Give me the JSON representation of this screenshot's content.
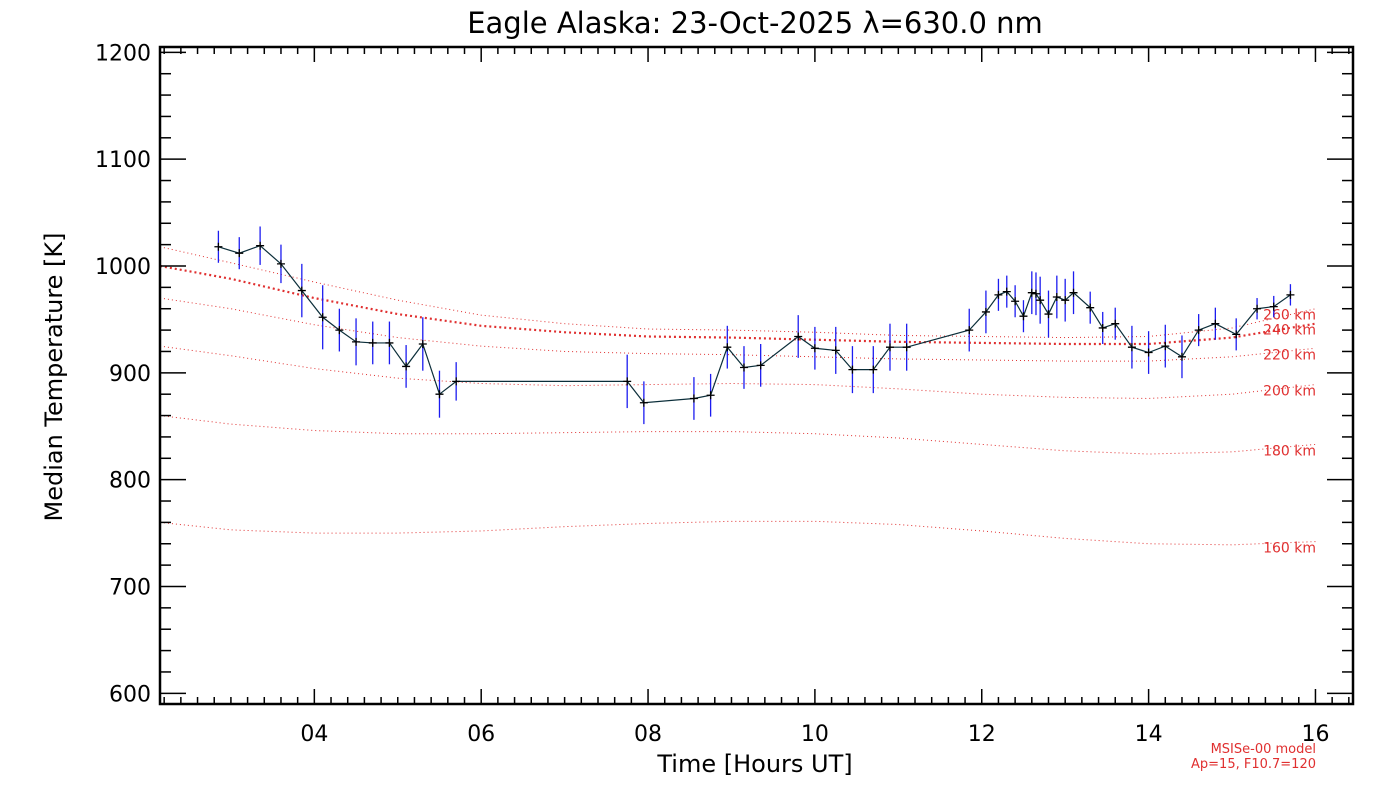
{
  "chart_data": {
    "type": "line",
    "title": "Eagle Alaska: 23-Oct-2025 λ=630.0 nm",
    "xlabel": "Time [Hours UT]",
    "ylabel": "Median Temperature [K]",
    "xlim": [
      2.15,
      16.45
    ],
    "ylim": [
      590,
      1205
    ],
    "x_ticks": [
      4,
      6,
      8,
      10,
      12,
      14,
      16
    ],
    "x_tick_labels": [
      "04",
      "06",
      "08",
      "10",
      "12",
      "14",
      "16"
    ],
    "y_ticks": [
      600,
      700,
      800,
      900,
      1000,
      1100,
      1200
    ],
    "y_tick_labels": [
      "600",
      "700",
      "800",
      "900",
      "1000",
      "1100",
      "1200"
    ],
    "grid": false,
    "colors": {
      "measured_line": "#0b2e3a",
      "error_bars": "#1c1cf0",
      "markers": "#000000",
      "model": "#e03030"
    },
    "measured": {
      "x": [
        2.85,
        3.1,
        3.35,
        3.6,
        3.85,
        4.1,
        4.3,
        4.5,
        4.7,
        4.9,
        5.1,
        5.3,
        5.5,
        5.7,
        7.75,
        7.95,
        8.55,
        8.75,
        8.95,
        9.15,
        9.35,
        9.8,
        10.0,
        10.25,
        10.45,
        10.7,
        10.9,
        11.1,
        11.85,
        12.05,
        12.2,
        12.3,
        12.4,
        12.5,
        12.6,
        12.65,
        12.7,
        12.8,
        12.9,
        13.0,
        13.1,
        13.3,
        13.45,
        13.6,
        13.8,
        14.0,
        14.2,
        14.4,
        14.6,
        14.8,
        15.05,
        15.3,
        15.5,
        15.7
      ],
      "y": [
        1018,
        1012,
        1019,
        1002,
        977,
        952,
        940,
        929,
        928,
        928,
        906,
        927,
        880,
        892,
        892,
        872,
        876,
        879,
        924,
        905,
        907,
        934,
        923,
        921,
        903,
        903,
        924,
        924,
        940,
        957,
        973,
        976,
        967,
        953,
        975,
        974,
        968,
        955,
        971,
        968,
        975,
        961,
        942,
        946,
        924,
        919,
        925,
        915,
        940,
        946,
        936,
        960,
        962,
        973
      ],
      "error": [
        15,
        15,
        18,
        18,
        25,
        30,
        20,
        22,
        20,
        20,
        20,
        25,
        22,
        18,
        25,
        20,
        20,
        20,
        20,
        20,
        20,
        20,
        20,
        22,
        22,
        22,
        22,
        22,
        20,
        20,
        15,
        15,
        15,
        15,
        20,
        20,
        22,
        22,
        20,
        20,
        20,
        15,
        15,
        15,
        20,
        20,
        20,
        20,
        15,
        15,
        15,
        10,
        10,
        10
      ]
    },
    "model_label": "MSISe-00 model",
    "model_params": "Ap=15, F10.7=120",
    "model_series": [
      {
        "name": "260 km",
        "x": [
          2.15,
          3.0,
          4.0,
          5.0,
          6.0,
          7.0,
          8.0,
          9.0,
          10.0,
          11.0,
          12.0,
          13.0,
          14.0,
          15.0,
          16.0
        ],
        "y": [
          1018,
          1003,
          985,
          968,
          954,
          946,
          941,
          940,
          938,
          935,
          934,
          933,
          934,
          942,
          960
        ]
      },
      {
        "name": "240 km",
        "x": [
          2.15,
          3.0,
          4.0,
          5.0,
          6.0,
          7.0,
          8.0,
          9.0,
          10.0,
          11.0,
          12.0,
          13.0,
          14.0,
          15.0,
          16.0
        ],
        "y": [
          1000,
          988,
          970,
          955,
          944,
          938,
          934,
          933,
          931,
          929,
          928,
          927,
          927,
          933,
          946
        ]
      },
      {
        "name": "220 km",
        "x": [
          2.15,
          3.0,
          4.0,
          5.0,
          6.0,
          7.0,
          8.0,
          9.0,
          10.0,
          11.0,
          12.0,
          13.0,
          14.0,
          15.0,
          16.0
        ],
        "y": [
          970,
          960,
          945,
          933,
          925,
          920,
          918,
          917,
          915,
          913,
          912,
          911,
          911,
          915,
          923
        ]
      },
      {
        "name": "200 km",
        "x": [
          2.15,
          3.0,
          4.0,
          5.0,
          6.0,
          7.0,
          8.0,
          9.0,
          10.0,
          11.0,
          12.0,
          13.0,
          14.0,
          15.0,
          16.0
        ],
        "y": [
          925,
          916,
          904,
          895,
          890,
          888,
          889,
          890,
          889,
          885,
          880,
          877,
          876,
          880,
          889
        ]
      },
      {
        "name": "180 km",
        "x": [
          2.15,
          3.0,
          4.0,
          5.0,
          6.0,
          7.0,
          8.0,
          9.0,
          10.0,
          11.0,
          12.0,
          13.0,
          14.0,
          15.0,
          16.0
        ],
        "y": [
          860,
          852,
          846,
          843,
          843,
          844,
          845,
          845,
          843,
          839,
          833,
          827,
          824,
          826,
          833
        ]
      },
      {
        "name": "160 km",
        "x": [
          2.15,
          3.0,
          4.0,
          5.0,
          6.0,
          7.0,
          8.0,
          9.0,
          10.0,
          11.0,
          12.0,
          13.0,
          14.0,
          15.0,
          16.0
        ],
        "y": [
          760,
          753,
          750,
          750,
          752,
          756,
          759,
          761,
          761,
          758,
          752,
          745,
          740,
          739,
          742
        ]
      }
    ]
  }
}
